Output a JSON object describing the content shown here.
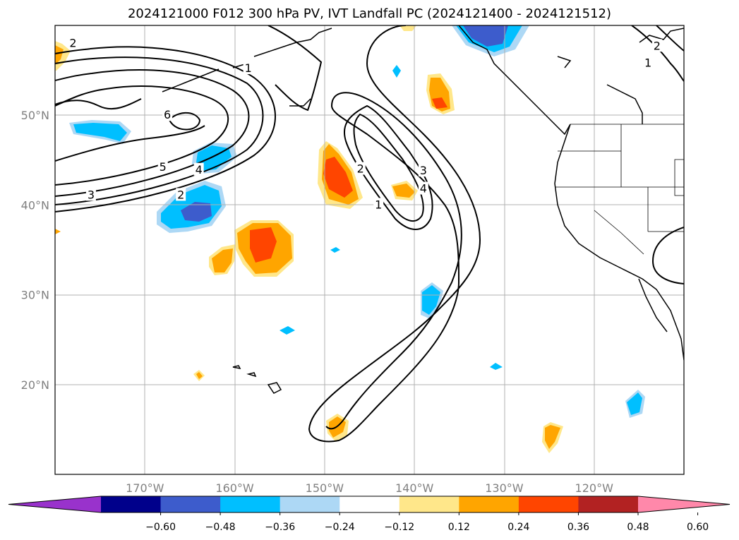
{
  "chart_data": {
    "type": "heatmap",
    "title": "2024121000 F012 300 hPa PV, IVT Landfall PC (2024121400 - 2024121512)",
    "x_axis": {
      "ticks": [
        -170,
        -160,
        -150,
        -140,
        -130,
        -120
      ],
      "tick_labels": [
        "170°W",
        "160°W",
        "150°W",
        "140°W",
        "130°W",
        "120°W"
      ],
      "range": [
        -180,
        -110
      ]
    },
    "y_axis": {
      "ticks": [
        20,
        30,
        40,
        50
      ],
      "tick_labels": [
        "20°N",
        "30°N",
        "40°N",
        "50°N"
      ],
      "range": [
        10,
        60
      ]
    },
    "grid": true,
    "colorbar": {
      "ticks": [
        "−0.60",
        "−0.48",
        "−0.36",
        "−0.24",
        "−0.12",
        "0.12",
        "0.24",
        "0.36",
        "0.48",
        "0.60"
      ],
      "colors": [
        "#9932cc",
        "#00008b",
        "#3d5ccc",
        "#00bfff",
        "#add8f5",
        "#ffffff",
        "#ffe78a",
        "#ffa500",
        "#ff4500",
        "#b22222",
        "#ff88aa"
      ],
      "extend": "both"
    },
    "contour_labels": [
      {
        "text": "1",
        "lon": -158.5,
        "lat": 55.2
      },
      {
        "text": "6",
        "lon": -167.5,
        "lat": 50.0
      },
      {
        "text": "5",
        "lon": -168.0,
        "lat": 44.2
      },
      {
        "text": "4",
        "lon": -164.0,
        "lat": 43.9
      },
      {
        "text": "3",
        "lon": -176.0,
        "lat": 41.1
      },
      {
        "text": "2",
        "lon": -166.0,
        "lat": 41.1
      },
      {
        "text": "2",
        "lon": -146.0,
        "lat": 44.0
      },
      {
        "text": "1",
        "lon": -144.0,
        "lat": 40.0
      },
      {
        "text": "3",
        "lon": -139.0,
        "lat": 43.8
      },
      {
        "text": "4",
        "lon": -139.0,
        "lat": 41.8
      },
      {
        "text": "2",
        "lon": -113.0,
        "lat": 57.7
      },
      {
        "text": "1",
        "lon": -114.0,
        "lat": 55.8
      },
      {
        "text": "2",
        "lon": -178.0,
        "lat": 58.0
      }
    ]
  }
}
